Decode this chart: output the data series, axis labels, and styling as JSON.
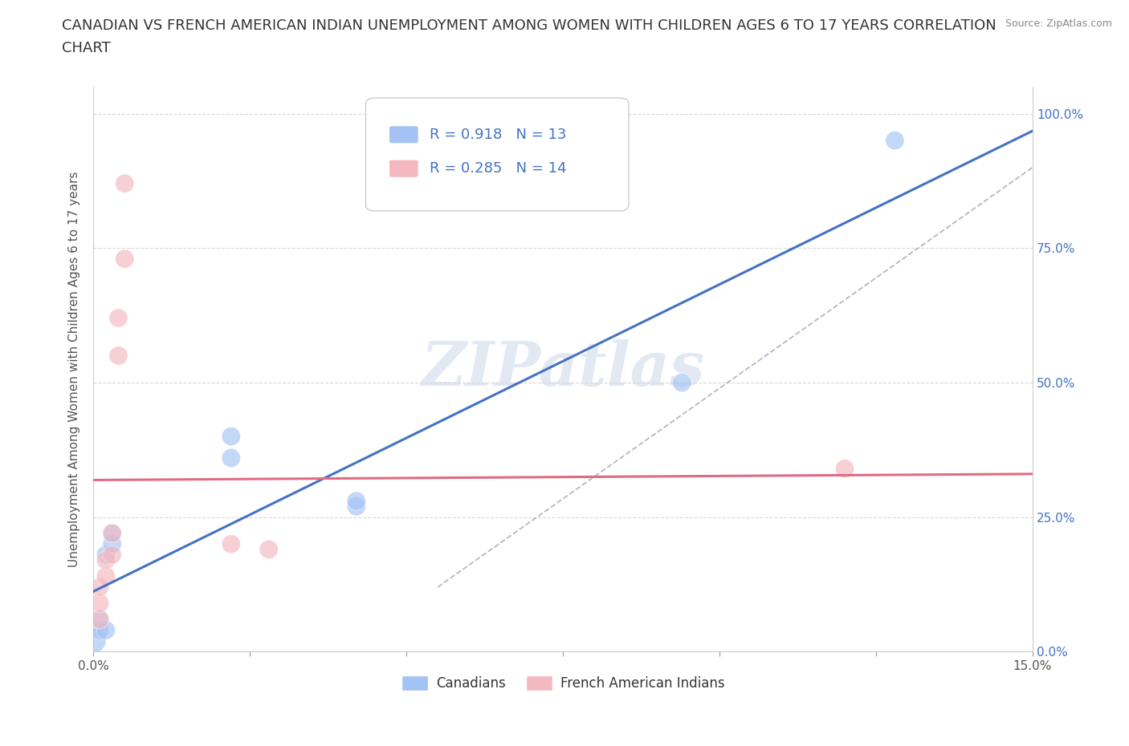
{
  "title_line1": "CANADIAN VS FRENCH AMERICAN INDIAN UNEMPLOYMENT AMONG WOMEN WITH CHILDREN AGES 6 TO 17 YEARS CORRELATION",
  "title_line2": "CHART",
  "source": "Source: ZipAtlas.com",
  "ylabel": "Unemployment Among Women with Children Ages 6 to 17 years",
  "xlim": [
    0.0,
    0.15
  ],
  "ylim": [
    0.0,
    1.05
  ],
  "ytick_labels": [
    "0.0%",
    "25.0%",
    "50.0%",
    "75.0%",
    "100.0%"
  ],
  "ytick_vals": [
    0.0,
    0.25,
    0.5,
    0.75,
    1.0
  ],
  "xtick_vals": [
    0.0,
    0.025,
    0.05,
    0.075,
    0.1,
    0.125,
    0.15
  ],
  "xtick_labels": [
    "0.0%",
    "",
    "",
    "",
    "",
    "",
    "15.0%"
  ],
  "canadians_x": [
    0.0,
    0.001,
    0.001,
    0.002,
    0.002,
    0.003,
    0.003,
    0.022,
    0.022,
    0.042,
    0.042,
    0.094,
    0.128
  ],
  "canadians_y": [
    0.02,
    0.04,
    0.06,
    0.04,
    0.18,
    0.2,
    0.22,
    0.36,
    0.4,
    0.27,
    0.28,
    0.5,
    0.95
  ],
  "french_x": [
    0.001,
    0.001,
    0.001,
    0.002,
    0.002,
    0.003,
    0.003,
    0.004,
    0.004,
    0.005,
    0.005,
    0.022,
    0.028,
    0.12
  ],
  "french_y": [
    0.06,
    0.09,
    0.12,
    0.14,
    0.17,
    0.18,
    0.22,
    0.55,
    0.62,
    0.73,
    0.87,
    0.2,
    0.19,
    0.34
  ],
  "canadian_color": "#a4c2f4",
  "french_color": "#f4b8c1",
  "canadian_line_color": "#4472c4",
  "french_line_color": "#e06b80",
  "ref_line_color": "#b0b8c8",
  "legend_R_canadian": "R = 0.918",
  "legend_N_canadian": "N = 13",
  "legend_R_french": "R = 0.285",
  "legend_N_french": "N = 14",
  "legend_label_canadian": "Canadians",
  "legend_label_french": "French American Indians",
  "watermark_text": "ZIPatlas",
  "background_color": "#ffffff",
  "grid_color": "#d8d8d8",
  "title_fontsize": 13,
  "axis_label_fontsize": 11,
  "tick_fontsize": 11,
  "legend_fontsize": 13,
  "text_color_blue": "#4472c4",
  "source_text_color": "#888888"
}
